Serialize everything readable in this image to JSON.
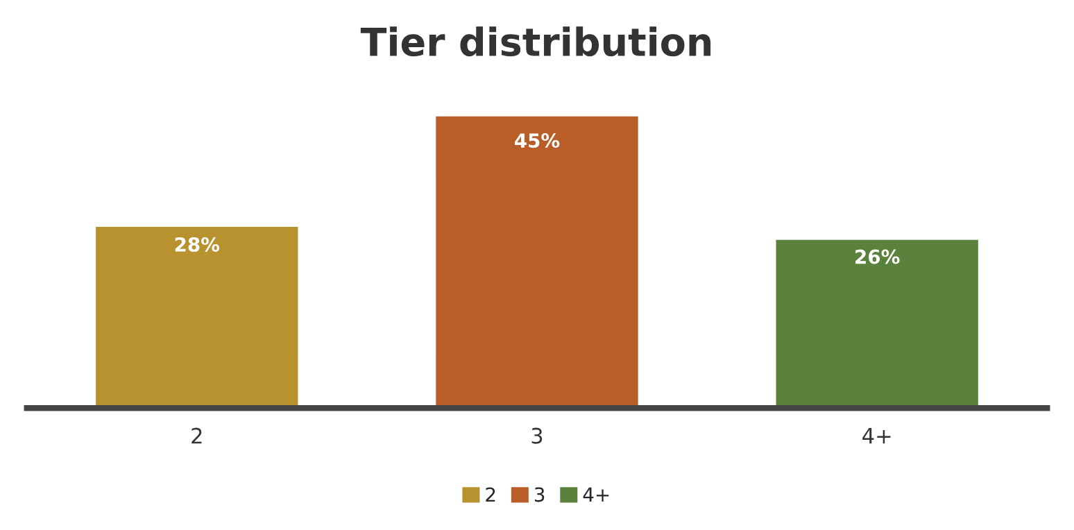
{
  "chart_data": {
    "type": "bar",
    "title": "Tier distribution",
    "categories": [
      "2",
      "3",
      "4+"
    ],
    "legend": "bottom",
    "grid": false,
    "series": [
      {
        "name": "2",
        "color": "#b8922f",
        "values": [
          28,
          null,
          null
        ],
        "value_labels": [
          "28%",
          null,
          null
        ]
      },
      {
        "name": "3",
        "color": "#b95e29",
        "values": [
          null,
          45,
          null
        ],
        "value_labels": [
          null,
          "45%",
          null
        ]
      },
      {
        "name": "4+",
        "color": "#5b823d",
        "values": [
          null,
          null,
          26
        ],
        "value_labels": [
          null,
          null,
          "26%"
        ]
      }
    ]
  }
}
